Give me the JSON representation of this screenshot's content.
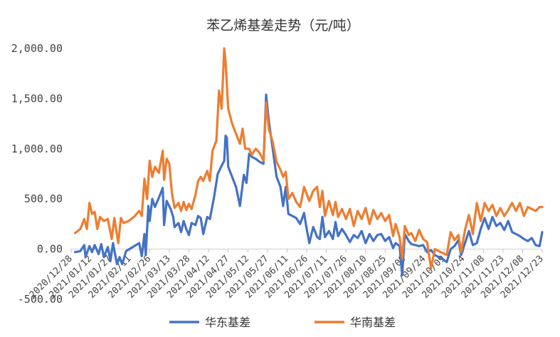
{
  "chart_data": {
    "type": "line",
    "title": "苯乙烯基差走势（元/吨）",
    "y_ticks": [
      "-500.00",
      "0.00",
      "500.00",
      "1,000.00",
      "1,500.00",
      "2,000.00"
    ],
    "ylim": [
      -500,
      2000
    ],
    "x_ticks": [
      "2020/12/28",
      "2021/01/12",
      "2021/01/27",
      "2021/02/11",
      "2021/02/26",
      "2021/03/13",
      "2021/03/28",
      "2021/04/12",
      "2021/04/27",
      "2021/05/12",
      "2021/05/27",
      "2021/06/11",
      "2021/06/26",
      "2021/07/11",
      "2021/07/26",
      "2021/08/10",
      "2021/08/25",
      "2021/09/09",
      "2021/09/24",
      "2021/10/09",
      "2021/10/24",
      "2021/11/08",
      "2021/11/23",
      "2021/12/08",
      "2021/12/23"
    ],
    "grid": false,
    "legend_position": "bottom",
    "colors": {
      "华东基差": "#4472C4",
      "华南基差": "#ED7D31"
    },
    "series": [
      {
        "name": "华东基差",
        "color": "#4472C4",
        "points": [
          [
            "2020-12-31",
            -30
          ],
          [
            "2021-01-04",
            -20
          ],
          [
            "2021-01-07",
            40
          ],
          [
            "2021-01-08",
            -80
          ],
          [
            "2021-01-11",
            30
          ],
          [
            "2021-01-13",
            -30
          ],
          [
            "2021-01-15",
            40
          ],
          [
            "2021-01-18",
            -50
          ],
          [
            "2021-01-20",
            50
          ],
          [
            "2021-01-22",
            -80
          ],
          [
            "2021-01-25",
            20
          ],
          [
            "2021-01-27",
            -120
          ],
          [
            "2021-01-29",
            60
          ],
          [
            "2021-02-01",
            -150
          ],
          [
            "2021-02-03",
            -80
          ],
          [
            "2021-02-05",
            -150
          ],
          [
            "2021-02-08",
            -20
          ],
          [
            "2021-02-18",
            60
          ],
          [
            "2021-02-20",
            -70
          ],
          [
            "2021-02-22",
            150
          ],
          [
            "2021-02-23",
            -60
          ],
          [
            "2021-02-25",
            430
          ],
          [
            "2021-02-26",
            280
          ],
          [
            "2021-02-28",
            500
          ],
          [
            "2021-03-02",
            420
          ],
          [
            "2021-03-05",
            510
          ],
          [
            "2021-03-08",
            610
          ],
          [
            "2021-03-09",
            240
          ],
          [
            "2021-03-11",
            480
          ],
          [
            "2021-03-14",
            400
          ],
          [
            "2021-03-16",
            320
          ],
          [
            "2021-03-17",
            220
          ],
          [
            "2021-03-20",
            260
          ],
          [
            "2021-03-22",
            170
          ],
          [
            "2021-03-24",
            280
          ],
          [
            "2021-03-26",
            200
          ],
          [
            "2021-03-28",
            140
          ],
          [
            "2021-03-30",
            260
          ],
          [
            "2021-04-02",
            240
          ],
          [
            "2021-04-04",
            330
          ],
          [
            "2021-04-06",
            310
          ],
          [
            "2021-04-08",
            150
          ],
          [
            "2021-04-11",
            320
          ],
          [
            "2021-04-13",
            300
          ],
          [
            "2021-04-16",
            500
          ],
          [
            "2021-04-19",
            750
          ],
          [
            "2021-04-22",
            830
          ],
          [
            "2021-04-24",
            880
          ],
          [
            "2021-04-25",
            1130
          ],
          [
            "2021-04-26",
            1110
          ],
          [
            "2021-04-27",
            820
          ],
          [
            "2021-04-30",
            720
          ],
          [
            "2021-05-03",
            620
          ],
          [
            "2021-05-06",
            430
          ],
          [
            "2021-05-09",
            740
          ],
          [
            "2021-05-11",
            660
          ],
          [
            "2021-05-13",
            950
          ],
          [
            "2021-05-15",
            920
          ],
          [
            "2021-05-18",
            900
          ],
          [
            "2021-05-21",
            870
          ],
          [
            "2021-05-24",
            850
          ],
          [
            "2021-05-26",
            1540
          ],
          [
            "2021-05-28",
            1280
          ],
          [
            "2021-05-31",
            1000
          ],
          [
            "2021-06-03",
            720
          ],
          [
            "2021-06-06",
            620
          ],
          [
            "2021-06-08",
            430
          ],
          [
            "2021-06-10",
            620
          ],
          [
            "2021-06-12",
            350
          ],
          [
            "2021-06-15",
            330
          ],
          [
            "2021-06-18",
            310
          ],
          [
            "2021-06-21",
            250
          ],
          [
            "2021-06-24",
            360
          ],
          [
            "2021-06-26",
            200
          ],
          [
            "2021-06-28",
            60
          ],
          [
            "2021-07-01",
            220
          ],
          [
            "2021-07-04",
            120
          ],
          [
            "2021-07-06",
            100
          ],
          [
            "2021-07-08",
            320
          ],
          [
            "2021-07-10",
            120
          ],
          [
            "2021-07-13",
            180
          ],
          [
            "2021-07-16",
            100
          ],
          [
            "2021-07-18",
            270
          ],
          [
            "2021-07-20",
            130
          ],
          [
            "2021-07-23",
            200
          ],
          [
            "2021-07-26",
            140
          ],
          [
            "2021-07-29",
            70
          ],
          [
            "2021-08-01",
            140
          ],
          [
            "2021-08-04",
            110
          ],
          [
            "2021-08-07",
            180
          ],
          [
            "2021-08-10",
            60
          ],
          [
            "2021-08-13",
            150
          ],
          [
            "2021-08-16",
            80
          ],
          [
            "2021-08-19",
            140
          ],
          [
            "2021-08-22",
            150
          ],
          [
            "2021-08-25",
            80
          ],
          [
            "2021-08-28",
            120
          ],
          [
            "2021-08-31",
            10
          ],
          [
            "2021-09-02",
            60
          ],
          [
            "2021-09-05",
            30
          ],
          [
            "2021-09-07",
            -260
          ],
          [
            "2021-09-09",
            150
          ],
          [
            "2021-09-12",
            80
          ],
          [
            "2021-09-14",
            50
          ],
          [
            "2021-09-17",
            40
          ],
          [
            "2021-09-20",
            30
          ],
          [
            "2021-09-23",
            40
          ],
          [
            "2021-09-26",
            -30
          ],
          [
            "2021-09-29",
            -10
          ],
          [
            "2021-10-02",
            -60
          ],
          [
            "2021-10-05",
            -80
          ],
          [
            "2021-10-08",
            -100
          ],
          [
            "2021-10-11",
            -130
          ],
          [
            "2021-10-14",
            0
          ],
          [
            "2021-10-17",
            30
          ],
          [
            "2021-10-20",
            90
          ],
          [
            "2021-10-22",
            -60
          ],
          [
            "2021-10-25",
            60
          ],
          [
            "2021-10-28",
            180
          ],
          [
            "2021-10-31",
            40
          ],
          [
            "2021-11-03",
            60
          ],
          [
            "2021-11-06",
            200
          ],
          [
            "2021-11-09",
            310
          ],
          [
            "2021-11-12",
            200
          ],
          [
            "2021-11-15",
            320
          ],
          [
            "2021-11-18",
            230
          ],
          [
            "2021-11-21",
            260
          ],
          [
            "2021-11-24",
            190
          ],
          [
            "2021-11-27",
            280
          ],
          [
            "2021-11-30",
            170
          ],
          [
            "2021-12-03",
            150
          ],
          [
            "2021-12-06",
            130
          ],
          [
            "2021-12-09",
            100
          ],
          [
            "2021-12-12",
            80
          ],
          [
            "2021-12-15",
            110
          ],
          [
            "2021-12-18",
            40
          ],
          [
            "2021-12-21",
            30
          ],
          [
            "2021-12-23",
            170
          ]
        ]
      },
      {
        "name": "华南基差",
        "color": "#ED7D31",
        "points": [
          [
            "2020-12-31",
            160
          ],
          [
            "2021-01-04",
            200
          ],
          [
            "2021-01-07",
            300
          ],
          [
            "2021-01-09",
            200
          ],
          [
            "2021-01-11",
            460
          ],
          [
            "2021-01-13",
            350
          ],
          [
            "2021-01-15",
            370
          ],
          [
            "2021-01-17",
            200
          ],
          [
            "2021-01-19",
            320
          ],
          [
            "2021-01-22",
            280
          ],
          [
            "2021-01-25",
            300
          ],
          [
            "2021-01-28",
            100
          ],
          [
            "2021-01-30",
            310
          ],
          [
            "2021-02-02",
            60
          ],
          [
            "2021-02-04",
            310
          ],
          [
            "2021-02-06",
            260
          ],
          [
            "2021-02-10",
            280
          ],
          [
            "2021-02-14",
            320
          ],
          [
            "2021-02-18",
            380
          ],
          [
            "2021-02-20",
            330
          ],
          [
            "2021-02-22",
            700
          ],
          [
            "2021-02-24",
            500
          ],
          [
            "2021-02-26",
            880
          ],
          [
            "2021-02-28",
            720
          ],
          [
            "2021-03-02",
            820
          ],
          [
            "2021-03-05",
            760
          ],
          [
            "2021-03-08",
            980
          ],
          [
            "2021-03-09",
            690
          ],
          [
            "2021-03-11",
            900
          ],
          [
            "2021-03-13",
            850
          ],
          [
            "2021-03-15",
            560
          ],
          [
            "2021-03-17",
            410
          ],
          [
            "2021-03-20",
            460
          ],
          [
            "2021-03-22",
            380
          ],
          [
            "2021-03-24",
            470
          ],
          [
            "2021-03-26",
            390
          ],
          [
            "2021-03-28",
            450
          ],
          [
            "2021-03-30",
            400
          ],
          [
            "2021-04-02",
            540
          ],
          [
            "2021-04-04",
            680
          ],
          [
            "2021-04-06",
            720
          ],
          [
            "2021-04-08",
            680
          ],
          [
            "2021-04-11",
            780
          ],
          [
            "2021-04-13",
            680
          ],
          [
            "2021-04-15",
            980
          ],
          [
            "2021-04-18",
            1080
          ],
          [
            "2021-04-20",
            1580
          ],
          [
            "2021-04-22",
            1400
          ],
          [
            "2021-04-24",
            2000
          ],
          [
            "2021-04-25",
            1870
          ],
          [
            "2021-04-27",
            1400
          ],
          [
            "2021-04-30",
            1250
          ],
          [
            "2021-05-03",
            1150
          ],
          [
            "2021-05-06",
            1050
          ],
          [
            "2021-05-08",
            1200
          ],
          [
            "2021-05-10",
            1000
          ],
          [
            "2021-05-13",
            1000
          ],
          [
            "2021-05-15",
            940
          ],
          [
            "2021-05-18",
            1000
          ],
          [
            "2021-05-21",
            960
          ],
          [
            "2021-05-24",
            880
          ],
          [
            "2021-05-26",
            1460
          ],
          [
            "2021-05-28",
            1200
          ],
          [
            "2021-05-31",
            1070
          ],
          [
            "2021-06-03",
            870
          ],
          [
            "2021-06-06",
            790
          ],
          [
            "2021-06-08",
            720
          ],
          [
            "2021-06-10",
            770
          ],
          [
            "2021-06-12",
            500
          ],
          [
            "2021-06-15",
            560
          ],
          [
            "2021-06-18",
            470
          ],
          [
            "2021-06-21",
            420
          ],
          [
            "2021-06-24",
            620
          ],
          [
            "2021-06-26",
            550
          ],
          [
            "2021-06-28",
            480
          ],
          [
            "2021-07-01",
            580
          ],
          [
            "2021-07-04",
            620
          ],
          [
            "2021-07-06",
            420
          ],
          [
            "2021-07-08",
            580
          ],
          [
            "2021-07-10",
            330
          ],
          [
            "2021-07-13",
            480
          ],
          [
            "2021-07-16",
            340
          ],
          [
            "2021-07-18",
            470
          ],
          [
            "2021-07-20",
            320
          ],
          [
            "2021-07-23",
            400
          ],
          [
            "2021-07-26",
            300
          ],
          [
            "2021-07-29",
            400
          ],
          [
            "2021-08-01",
            230
          ],
          [
            "2021-08-04",
            380
          ],
          [
            "2021-08-07",
            300
          ],
          [
            "2021-08-10",
            410
          ],
          [
            "2021-08-13",
            250
          ],
          [
            "2021-08-16",
            390
          ],
          [
            "2021-08-19",
            300
          ],
          [
            "2021-08-22",
            360
          ],
          [
            "2021-08-25",
            280
          ],
          [
            "2021-08-28",
            340
          ],
          [
            "2021-08-31",
            130
          ],
          [
            "2021-09-02",
            250
          ],
          [
            "2021-09-05",
            120
          ],
          [
            "2021-09-07",
            -100
          ],
          [
            "2021-09-09",
            230
          ],
          [
            "2021-09-12",
            140
          ],
          [
            "2021-09-14",
            160
          ],
          [
            "2021-09-17",
            80
          ],
          [
            "2021-09-20",
            190
          ],
          [
            "2021-09-23",
            100
          ],
          [
            "2021-09-26",
            70
          ],
          [
            "2021-09-29",
            -190
          ],
          [
            "2021-10-02",
            0
          ],
          [
            "2021-10-05",
            -20
          ],
          [
            "2021-10-08",
            -40
          ],
          [
            "2021-10-11",
            -60
          ],
          [
            "2021-10-14",
            170
          ],
          [
            "2021-10-17",
            90
          ],
          [
            "2021-10-20",
            140
          ],
          [
            "2021-10-22",
            -30
          ],
          [
            "2021-10-25",
            190
          ],
          [
            "2021-10-28",
            340
          ],
          [
            "2021-10-31",
            150
          ],
          [
            "2021-11-03",
            460
          ],
          [
            "2021-11-06",
            280
          ],
          [
            "2021-11-09",
            460
          ],
          [
            "2021-11-12",
            380
          ],
          [
            "2021-11-15",
            440
          ],
          [
            "2021-11-18",
            330
          ],
          [
            "2021-11-21",
            410
          ],
          [
            "2021-11-24",
            330
          ],
          [
            "2021-11-27",
            390
          ],
          [
            "2021-11-30",
            460
          ],
          [
            "2021-12-03",
            380
          ],
          [
            "2021-12-06",
            460
          ],
          [
            "2021-12-09",
            330
          ],
          [
            "2021-12-12",
            420
          ],
          [
            "2021-12-15",
            400
          ],
          [
            "2021-12-18",
            380
          ],
          [
            "2021-12-21",
            420
          ],
          [
            "2021-12-23",
            420
          ]
        ]
      }
    ]
  }
}
